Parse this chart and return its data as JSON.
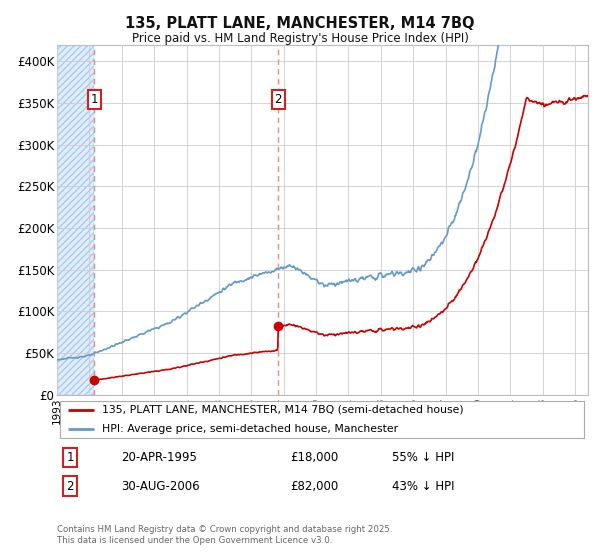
{
  "title": "135, PLATT LANE, MANCHESTER, M14 7BQ",
  "subtitle": "Price paid vs. HM Land Registry's House Price Index (HPI)",
  "red_label": "135, PLATT LANE, MANCHESTER, M14 7BQ (semi-detached house)",
  "blue_label": "HPI: Average price, semi-detached house, Manchester",
  "footnote": "Contains HM Land Registry data © Crown copyright and database right 2025.\nThis data is licensed under the Open Government Licence v3.0.",
  "annotation1": {
    "label": "1",
    "date": "20-APR-1995",
    "price": "£18,000",
    "note": "55% ↓ HPI"
  },
  "annotation2": {
    "label": "2",
    "date": "30-AUG-2006",
    "price": "£82,000",
    "note": "43% ↓ HPI"
  },
  "ylim": [
    0,
    420000
  ],
  "yticks": [
    0,
    50000,
    100000,
    150000,
    200000,
    250000,
    300000,
    350000,
    400000
  ],
  "ytick_labels": [
    "£0",
    "£50K",
    "£100K",
    "£150K",
    "£200K",
    "£250K",
    "£300K",
    "£350K",
    "£400K"
  ],
  "red_color": "#cc0000",
  "blue_color": "#6699cc",
  "vline_color": "#ee8888",
  "background_color": "#ffffff",
  "grid_color": "#cccccc",
  "hatch_fill_color": "#ddeeff",
  "sale1_year": 1995.3,
  "sale1_price": 18000,
  "sale2_year": 2006.67,
  "sale2_price": 82000,
  "xlim_start": 1993.0,
  "xlim_end": 2025.8
}
